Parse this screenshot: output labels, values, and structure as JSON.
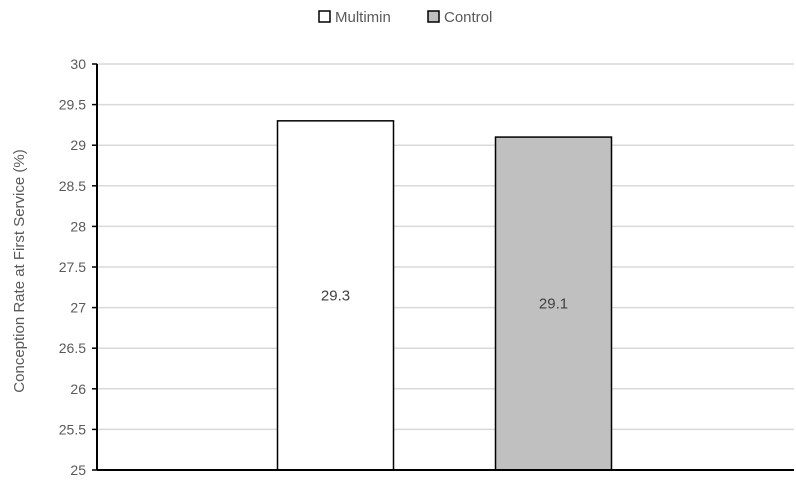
{
  "chart_data": {
    "type": "bar",
    "categories": [
      "Multimin",
      "Control"
    ],
    "values": [
      29.3,
      29.1
    ],
    "data_labels": [
      "29.3",
      "29.1"
    ],
    "ylabel": "Conception Rate at First Service (%)",
    "ylim": [
      25,
      30
    ],
    "yticks": [
      25,
      25.5,
      26,
      26.5,
      27,
      27.5,
      28,
      28.5,
      29,
      29.5,
      30
    ],
    "grid": true,
    "legend": {
      "placement": "top",
      "entries": [
        "Multimin",
        "Control"
      ]
    },
    "colors": [
      "#ffffff",
      "#c0c0c0"
    ],
    "edge_color": "#000000",
    "grid_color": "#d9d9d9"
  }
}
